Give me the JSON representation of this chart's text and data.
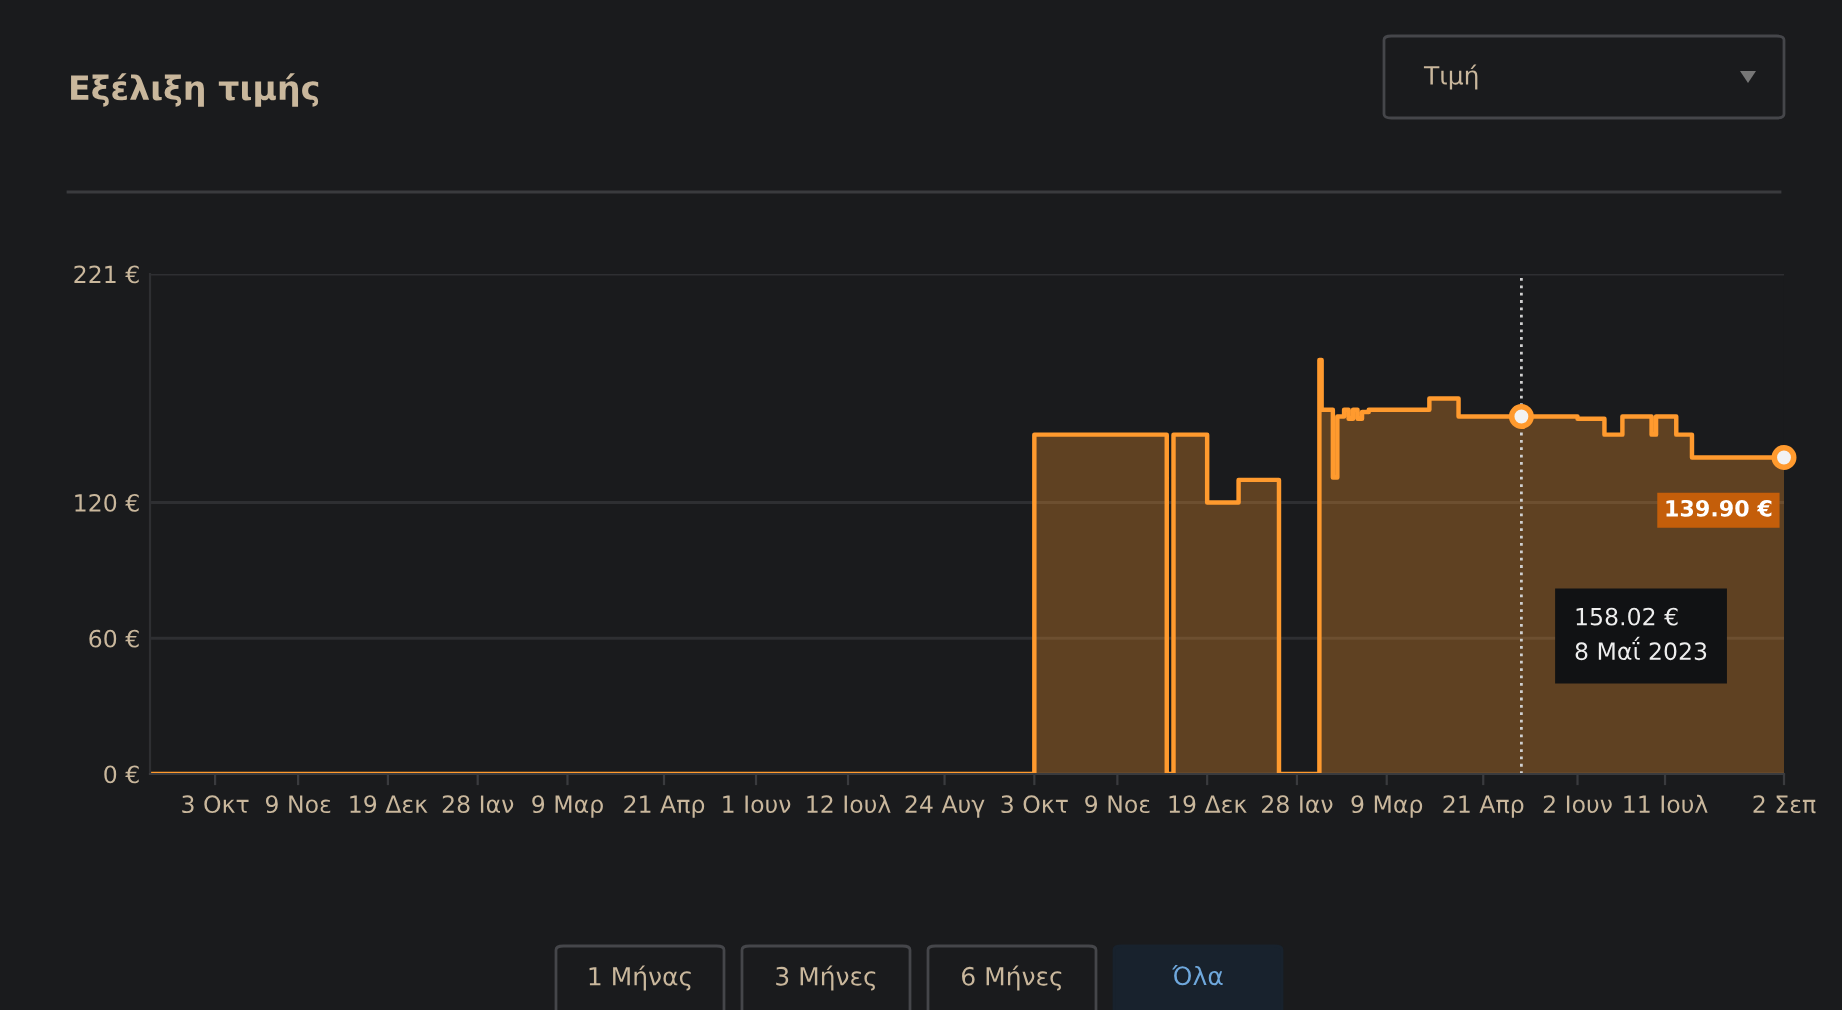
{
  "chart_data": {
    "type": "step",
    "title": "Εξέλιξη τιμής",
    "x": [
      "2021-09-04",
      "2022-10-03",
      "2022-12-01",
      "2022-12-04",
      "2022-12-19",
      "2023-01-02",
      "2023-01-20",
      "2023-02-07",
      "2023-02-08",
      "2023-02-13",
      "2023-02-15",
      "2023-02-18",
      "2023-02-20",
      "2023-02-22",
      "2023-02-24",
      "2023-02-26",
      "2023-03-01",
      "2023-03-28",
      "2023-04-10",
      "2023-05-08",
      "2023-06-02",
      "2023-06-14",
      "2023-06-22",
      "2023-07-05",
      "2023-07-07",
      "2023-07-16",
      "2023-07-23",
      "2023-09-02"
    ],
    "series": [
      {
        "color": "#ff9a2e",
        "values": [
          0,
          150,
          0,
          150,
          120,
          130,
          0,
          183,
          161,
          131,
          158,
          161,
          157,
          161,
          157,
          160,
          161,
          166,
          158,
          158,
          157,
          150,
          158,
          150,
          158,
          150,
          139.9,
          139.9
        ]
      }
    ],
    "xlim": [
      "2021-09-04",
      "2023-09-02"
    ],
    "xticks": [
      {
        "value": "2021-10-03",
        "label": "3 Οκτ"
      },
      {
        "value": "2021-11-09",
        "label": "9 Νοε"
      },
      {
        "value": "2021-12-19",
        "label": "19 Δεκ"
      },
      {
        "value": "2022-01-28",
        "label": "28 Ιαν"
      },
      {
        "value": "2022-03-09",
        "label": "9 Μαρ"
      },
      {
        "value": "2022-04-21",
        "label": "21 Απρ"
      },
      {
        "value": "2022-06-01",
        "label": "1 Ιουν"
      },
      {
        "value": "2022-07-12",
        "label": "12 Ιουλ"
      },
      {
        "value": "2022-08-24",
        "label": "24 Αυγ"
      },
      {
        "value": "2022-10-03",
        "label": "3 Οκτ"
      },
      {
        "value": "2022-11-09",
        "label": "9 Νοε"
      },
      {
        "value": "2022-12-19",
        "label": "19 Δεκ"
      },
      {
        "value": "2023-01-28",
        "label": "28 Ιαν"
      },
      {
        "value": "2023-03-09",
        "label": "9 Μαρ"
      },
      {
        "value": "2023-04-21",
        "label": "21 Απρ"
      },
      {
        "value": "2023-06-02",
        "label": "2 Ιουν"
      },
      {
        "value": "2023-07-11",
        "label": "11 Ιουλ"
      },
      {
        "value": "2023-09-02",
        "label": "2 Σεπ"
      }
    ],
    "ylim": [
      0,
      221
    ],
    "yticks": [
      {
        "value": 0,
        "label": "0 €"
      },
      {
        "value": 60,
        "label": "60 €"
      },
      {
        "value": 120,
        "label": "120 €"
      },
      {
        "value": 221,
        "label": "221 €"
      }
    ],
    "grid": "y",
    "ref_lines": [
      {
        "axis": "x",
        "value": "2023-05-08",
        "color": "#cfcfcf",
        "line_style": "dotted"
      }
    ],
    "annotations": [
      {
        "text": "139.90 €",
        "x": "2023-09-02",
        "y": 139.9
      },
      "158.02 €\n8 Μαΐ 2023",
      "Τιμή",
      "1 Μήνας",
      "3 Μήνες",
      "6 Μήνες",
      "Όλα"
    ]
  }
}
